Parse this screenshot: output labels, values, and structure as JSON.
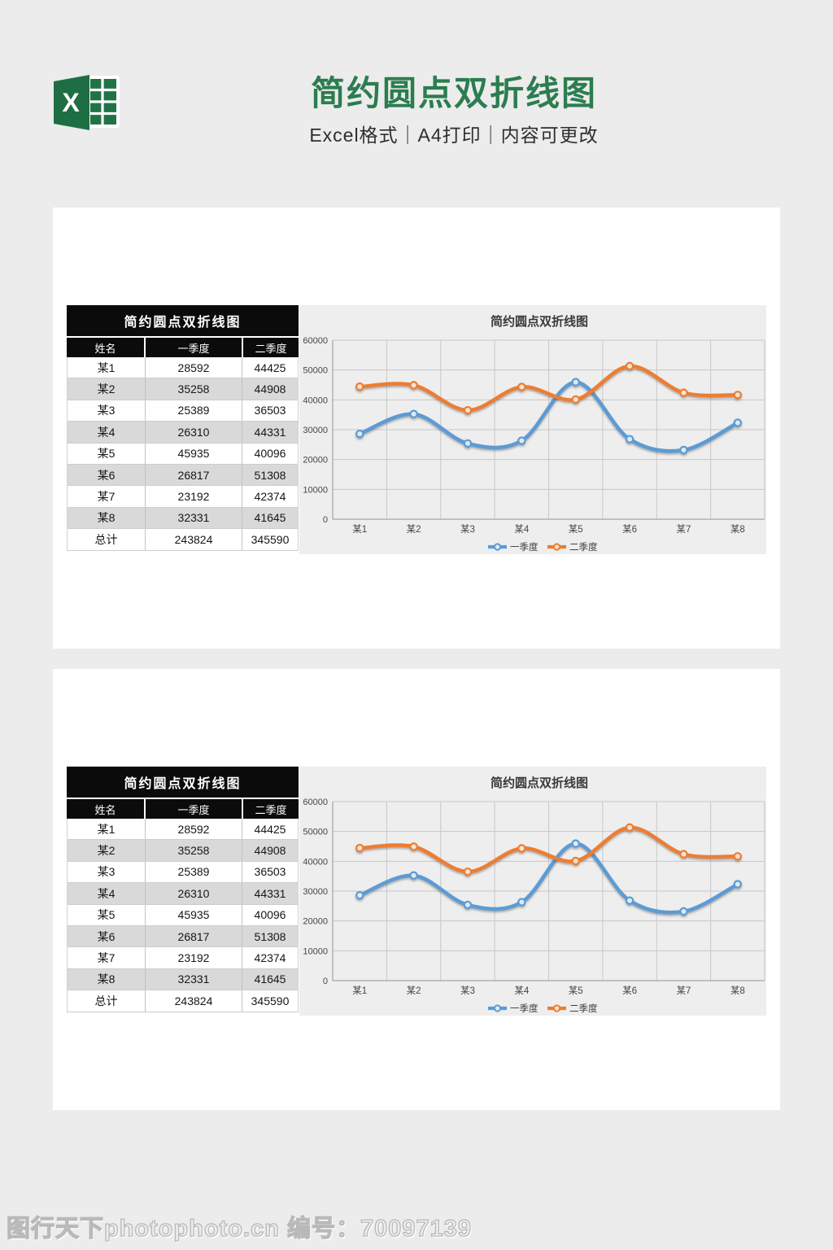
{
  "header": {
    "title": "简约圆点双折线图",
    "subtitle": "Excel格式｜A4打印｜内容可更改",
    "logo_letter": "X",
    "brand_green": "#217346"
  },
  "watermark": "图行天下photophoto.cn 编号：70097139",
  "table": {
    "title": "简约圆点双折线图",
    "columns": [
      "姓名",
      "一季度",
      "二季度"
    ],
    "rows": [
      [
        "某1",
        "28592",
        "44425"
      ],
      [
        "某2",
        "35258",
        "44908"
      ],
      [
        "某3",
        "25389",
        "36503"
      ],
      [
        "某4",
        "26310",
        "44331"
      ],
      [
        "某5",
        "45935",
        "40096"
      ],
      [
        "某6",
        "26817",
        "51308"
      ],
      [
        "某7",
        "23192",
        "42374"
      ],
      [
        "某8",
        "32331",
        "41645"
      ],
      [
        "总计",
        "243824",
        "345590"
      ]
    ]
  },
  "chart_data": {
    "type": "line",
    "title": "简约圆点双折线图",
    "categories": [
      "某1",
      "某2",
      "某3",
      "某4",
      "某5",
      "某6",
      "某7",
      "某8"
    ],
    "series": [
      {
        "name": "一季度",
        "color": "#5b9bd5",
        "marker_fill": "#ddebf7",
        "values": [
          28592,
          35258,
          25389,
          26310,
          45935,
          26817,
          23192,
          32331
        ]
      },
      {
        "name": "二季度",
        "color": "#ed7d31",
        "marker_fill": "#fbe2d0",
        "values": [
          44425,
          44908,
          36503,
          44331,
          40096,
          51308,
          42374,
          41645
        ]
      }
    ],
    "ylim": [
      0,
      60000
    ],
    "ytick_step": 10000,
    "yticks": [
      "0",
      "10000",
      "20000",
      "30000",
      "40000",
      "50000",
      "60000"
    ],
    "grid": true,
    "smooth": true,
    "legend_position": "bottom"
  }
}
